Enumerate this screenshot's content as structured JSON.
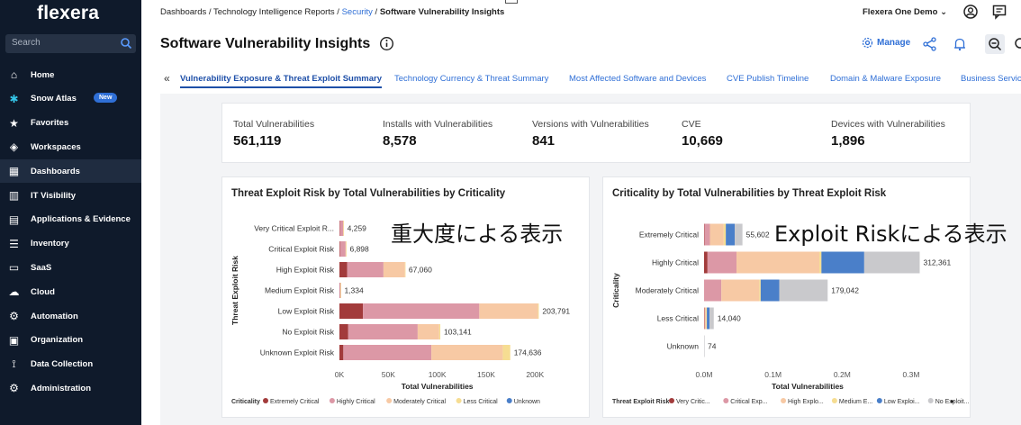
{
  "app": {
    "logo": "flexera"
  },
  "sidebar": {
    "search_placeholder": "Search",
    "items": [
      {
        "label": "Home",
        "icon": "home-icon"
      },
      {
        "label": "Snow Atlas",
        "icon": "snowflake-icon",
        "badge": "New"
      },
      {
        "label": "Favorites",
        "icon": "star-icon"
      },
      {
        "label": "Workspaces",
        "icon": "cube-icon"
      },
      {
        "label": "Dashboards",
        "icon": "grid-icon"
      },
      {
        "label": "IT Visibility",
        "icon": "chart-icon"
      },
      {
        "label": "Applications & Evidence",
        "icon": "window-icon"
      },
      {
        "label": "Inventory",
        "icon": "list-icon"
      },
      {
        "label": "SaaS",
        "icon": "monitor-icon"
      },
      {
        "label": "Cloud",
        "icon": "cloud-icon"
      },
      {
        "label": "Automation",
        "icon": "gear-icon"
      },
      {
        "label": "Organization",
        "icon": "org-icon"
      },
      {
        "label": "Data Collection",
        "icon": "antenna-icon"
      },
      {
        "label": "Administration",
        "icon": "settings-icon"
      }
    ]
  },
  "header": {
    "breadcrumb": [
      "Dashboards",
      "Technology Intelligence Reports",
      "Security",
      "Software Vulnerability Insights"
    ],
    "breadcrumb_sep": " / ",
    "tenant": "Flexera One Demo",
    "page_title": "Software Vulnerability Insights",
    "manage_label": "Manage"
  },
  "tabs": [
    "Vulnerability Exposure & Threat Exploit Summary",
    "Technology Currency & Threat Summary",
    "Most Affected Software and Devices",
    "CVE Publish Timeline",
    "Domain & Malware Exposure",
    "Business Service"
  ],
  "kpis": [
    {
      "label": "Total Vulnerabilities",
      "value": "561,119"
    },
    {
      "label": "Installs with Vulnerabilities",
      "value": "8,578"
    },
    {
      "label": "Versions with Vulnerabilities",
      "value": "841"
    },
    {
      "label": "CVE",
      "value": "10,669"
    },
    {
      "label": "Devices with Vulnerabilities",
      "value": "1,896"
    }
  ],
  "overlays": {
    "left": "重大度による表示",
    "right": "Exploit Riskによる表示"
  },
  "colors": {
    "extremely_critical": "#a23b3b",
    "highly_critical": "#dc98a6",
    "moderately_critical": "#f7c9a4",
    "less_critical": "#f6dd92",
    "unknown": "#4a7fc9",
    "very_critical_exploit": "#a23b3b",
    "critical_exploit": "#dc98a6",
    "high_exploit": "#f7c9a4",
    "medium_exploit": "#f6dd92",
    "low_exploit": "#4a7fc9",
    "no_exploit": "#c9c9cc"
  },
  "chart_data": [
    {
      "type": "bar",
      "orientation": "horizontal",
      "stacked": true,
      "title": "Threat Exploit Risk by Total Vulnerabilities by Criticality",
      "xlabel": "Total Vulnerabilities",
      "ylabel": "Threat Exploit Risk",
      "xlim": [
        0,
        220000
      ],
      "xticks": [
        0,
        50000,
        100000,
        150000,
        200000
      ],
      "xtick_labels": [
        "0K",
        "50K",
        "100K",
        "150K",
        "200K"
      ],
      "categories": [
        "Very Critical Exploit R...",
        "Critical Exploit Risk",
        "High Exploit Risk",
        "Medium Exploit Risk",
        "Low Exploit Risk",
        "No Exploit Risk",
        "Unknown Exploit Risk"
      ],
      "totals": [
        4259,
        6898,
        67060,
        1334,
        203791,
        103141,
        174636
      ],
      "total_labels": [
        "4,259",
        "6,898",
        "67,060",
        "1,334",
        "203,791",
        "103,141",
        "174,636"
      ],
      "legend_title": "Criticality",
      "series": [
        {
          "name": "Extremely Critical",
          "color_key": "extremely_critical",
          "values": [
            300,
            500,
            8000,
            150,
            24000,
            9000,
            4000
          ]
        },
        {
          "name": "Highly Critical",
          "color_key": "highly_critical",
          "values": [
            3500,
            5800,
            37000,
            900,
            119000,
            71000,
            90000
          ]
        },
        {
          "name": "Moderately Critical",
          "color_key": "moderately_critical",
          "values": [
            300,
            400,
            22000,
            200,
            60000,
            22000,
            73000
          ]
        },
        {
          "name": "Less Critical",
          "color_key": "less_critical",
          "values": [
            159,
            198,
            60,
            84,
            791,
            1141,
            7636
          ]
        },
        {
          "name": "Unknown",
          "color_key": "unknown",
          "values": [
            0,
            0,
            0,
            0,
            0,
            0,
            0
          ]
        }
      ]
    },
    {
      "type": "bar",
      "orientation": "horizontal",
      "stacked": true,
      "title": "Criticality by Total Vulnerabilities by Threat Exploit Risk",
      "xlabel": "Total Vulnerabilities",
      "ylabel": "Criticality",
      "xlim": [
        0,
        330000
      ],
      "xticks": [
        0,
        100000,
        200000,
        300000
      ],
      "xtick_labels": [
        "0.0M",
        "0.1M",
        "0.2M",
        "0.3M"
      ],
      "categories": [
        "Extremely Critical",
        "Highly Critical",
        "Moderately Critical",
        "Less Critical",
        "Unknown"
      ],
      "totals": [
        55602,
        312361,
        179042,
        14040,
        74
      ],
      "total_labels": [
        "55,602",
        "312,361",
        "179,042",
        "14,040",
        "74"
      ],
      "legend_title": "Threat Exploit Risk",
      "series": [
        {
          "name": "Very Critic...",
          "color_key": "very_critical_exploit",
          "values": [
            500,
            5000,
            0,
            400,
            0
          ]
        },
        {
          "name": "Critical Exp...",
          "color_key": "critical_exploit",
          "values": [
            8000,
            42000,
            25000,
            600,
            0
          ]
        },
        {
          "name": "High Explo...",
          "color_key": "high_exploit",
          "values": [
            20000,
            120000,
            55000,
            2000,
            0
          ]
        },
        {
          "name": "Medium E...",
          "color_key": "medium_exploit",
          "values": [
            3000,
            3000,
            2000,
            1000,
            0
          ]
        },
        {
          "name": "Low Exploi...",
          "color_key": "low_exploit",
          "values": [
            13000,
            62000,
            27000,
            4000,
            0
          ]
        },
        {
          "name": "No Exploit...",
          "color_key": "no_exploit",
          "values": [
            11102,
            80361,
            70042,
            6040,
            74
          ]
        }
      ]
    }
  ]
}
